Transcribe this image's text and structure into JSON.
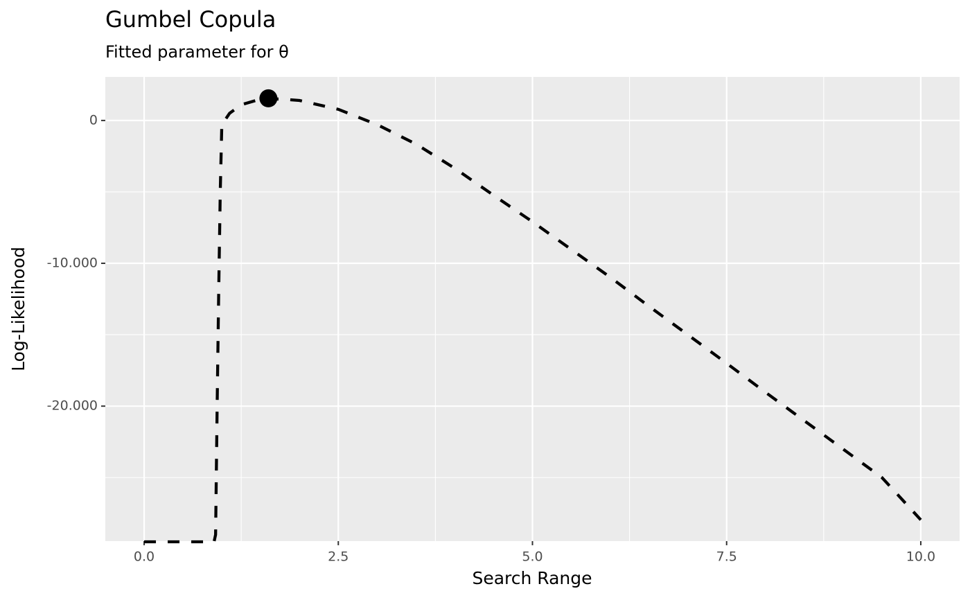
{
  "chart_data": {
    "type": "line",
    "title": "Gumbel Copula",
    "subtitle": "Fitted parameter for θ",
    "x_label": "Search Range",
    "y_label": "Log-Likelihood",
    "x": [
      0,
      0.5,
      0.9,
      0.92,
      0.94,
      0.96,
      0.98,
      1.0,
      1.1,
      1.25,
      1.5,
      1.75,
      2.0,
      2.5,
      3.0,
      3.5,
      4.0,
      4.5,
      5.0,
      5.5,
      6.0,
      6.5,
      7.0,
      7.5,
      8.0,
      8.5,
      9.0,
      9.5,
      10.0
    ],
    "values": [
      -29500,
      -29500,
      -29500,
      -29000,
      -20000,
      -12000,
      -5000,
      -300,
      500,
      1100,
      1500,
      1500,
      1400,
      780,
      -290,
      -1650,
      -3350,
      -5240,
      -7090,
      -9030,
      -10970,
      -13010,
      -15000,
      -17000,
      -19030,
      -21020,
      -23010,
      -25000,
      -27960
    ],
    "color": "#000000",
    "line_style": "dashed",
    "highlight": {
      "x": 1.6,
      "y": 1550
    },
    "xlim": [
      -0.5,
      10.5
    ],
    "ylim": [
      -29450,
      3050
    ],
    "xticks": [
      {
        "value": 0,
        "label": "0.0"
      },
      2.5,
      {
        "value": 5,
        "label": "5.0"
      },
      7.5,
      {
        "value": 10,
        "label": "10.0"
      }
    ],
    "yticks": [
      0,
      {
        "value": -10000,
        "label": "-10.000"
      },
      {
        "value": -20000,
        "label": "-20.000"
      }
    ],
    "x_minor_breaks": [
      1.25,
      3.75,
      6.25,
      8.75
    ],
    "y_minor_breaks": [
      -5000,
      -15000,
      -25000
    ],
    "grid": true
  }
}
